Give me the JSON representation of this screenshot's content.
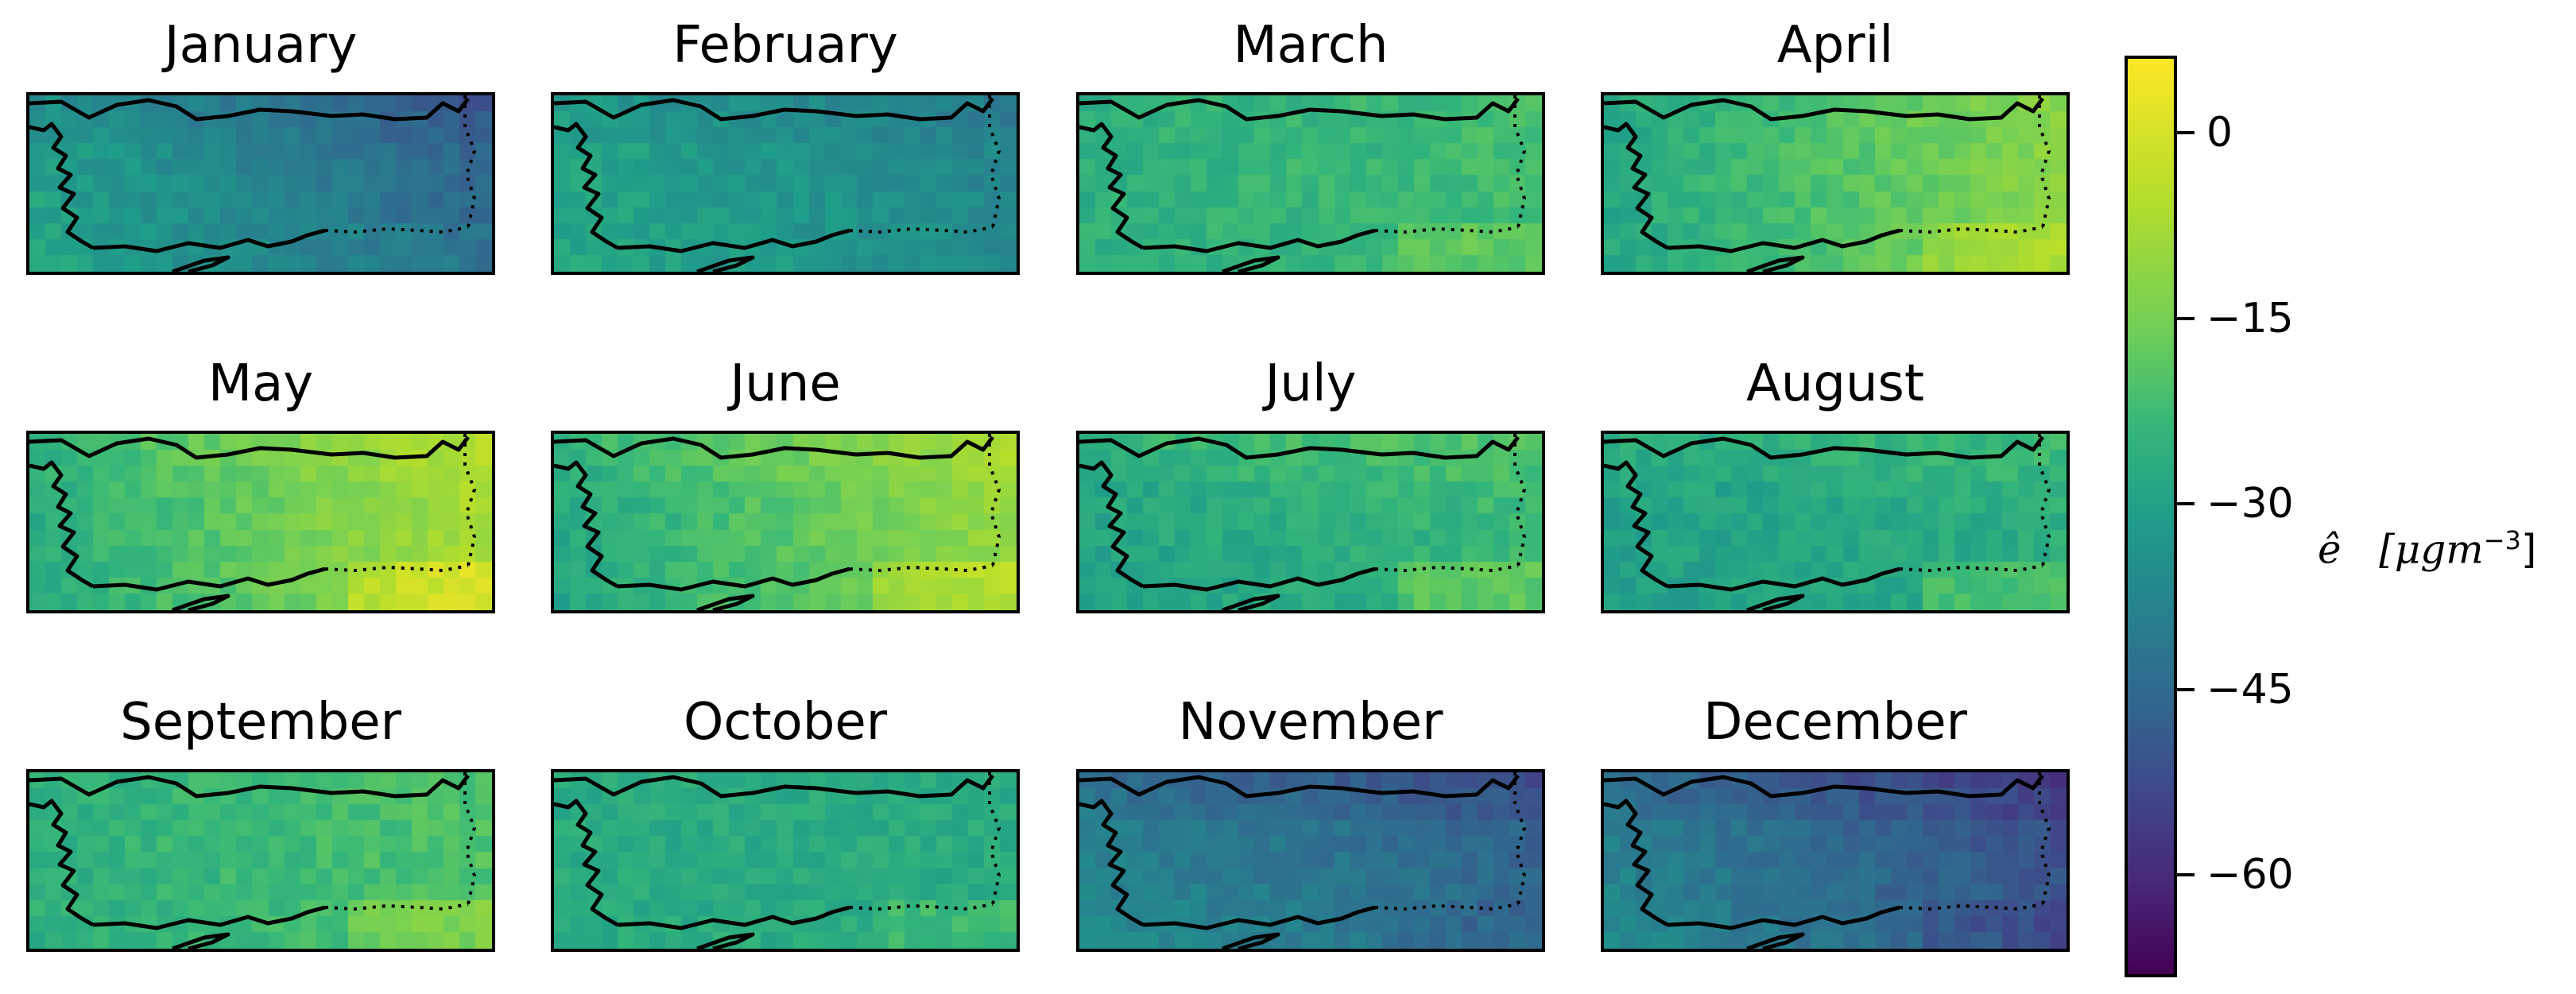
{
  "chart_data": {
    "type": "heatmap",
    "panels": [
      {
        "title": "January",
        "mean": -38,
        "east": -8,
        "north": -4,
        "south": 2
      },
      {
        "title": "February",
        "mean": -33,
        "east": -4,
        "north": -3,
        "south": 0
      },
      {
        "title": "March",
        "mean": -24,
        "east": 2,
        "north": 0,
        "south": 4
      },
      {
        "title": "April",
        "mean": -20,
        "east": 8,
        "north": 0,
        "south": 6
      },
      {
        "title": "May",
        "mean": -17,
        "east": 10,
        "north": 2,
        "south": 8
      },
      {
        "title": "June",
        "mean": -19,
        "east": 9,
        "north": 3,
        "south": 6
      },
      {
        "title": "July",
        "mean": -26,
        "east": 3,
        "north": 4,
        "south": 6
      },
      {
        "title": "August",
        "mean": -28,
        "east": 2,
        "north": 3,
        "south": 6
      },
      {
        "title": "September",
        "mean": -23,
        "east": 3,
        "north": 0,
        "south": 6
      },
      {
        "title": "October",
        "mean": -27,
        "east": 0,
        "north": 0,
        "south": 4
      },
      {
        "title": "November",
        "mean": -42,
        "east": -4,
        "north": -6,
        "south": -2
      },
      {
        "title": "December",
        "mean": -45,
        "east": -6,
        "north": -6,
        "south": -3
      }
    ],
    "colorbar": {
      "colormap": "viridis",
      "range": [
        -68,
        6
      ],
      "ticks": [
        0,
        -15,
        -30,
        -45,
        -60
      ],
      "tick_labels": [
        "0",
        "−15",
        "−30",
        "−45",
        "−60"
      ],
      "label_symbol": "ê",
      "label_units": "[μgm",
      "label_exp": "−3",
      "label_close": "]"
    },
    "grid": false
  },
  "colors": {
    "border": "#000000",
    "coastline": "#000000"
  }
}
